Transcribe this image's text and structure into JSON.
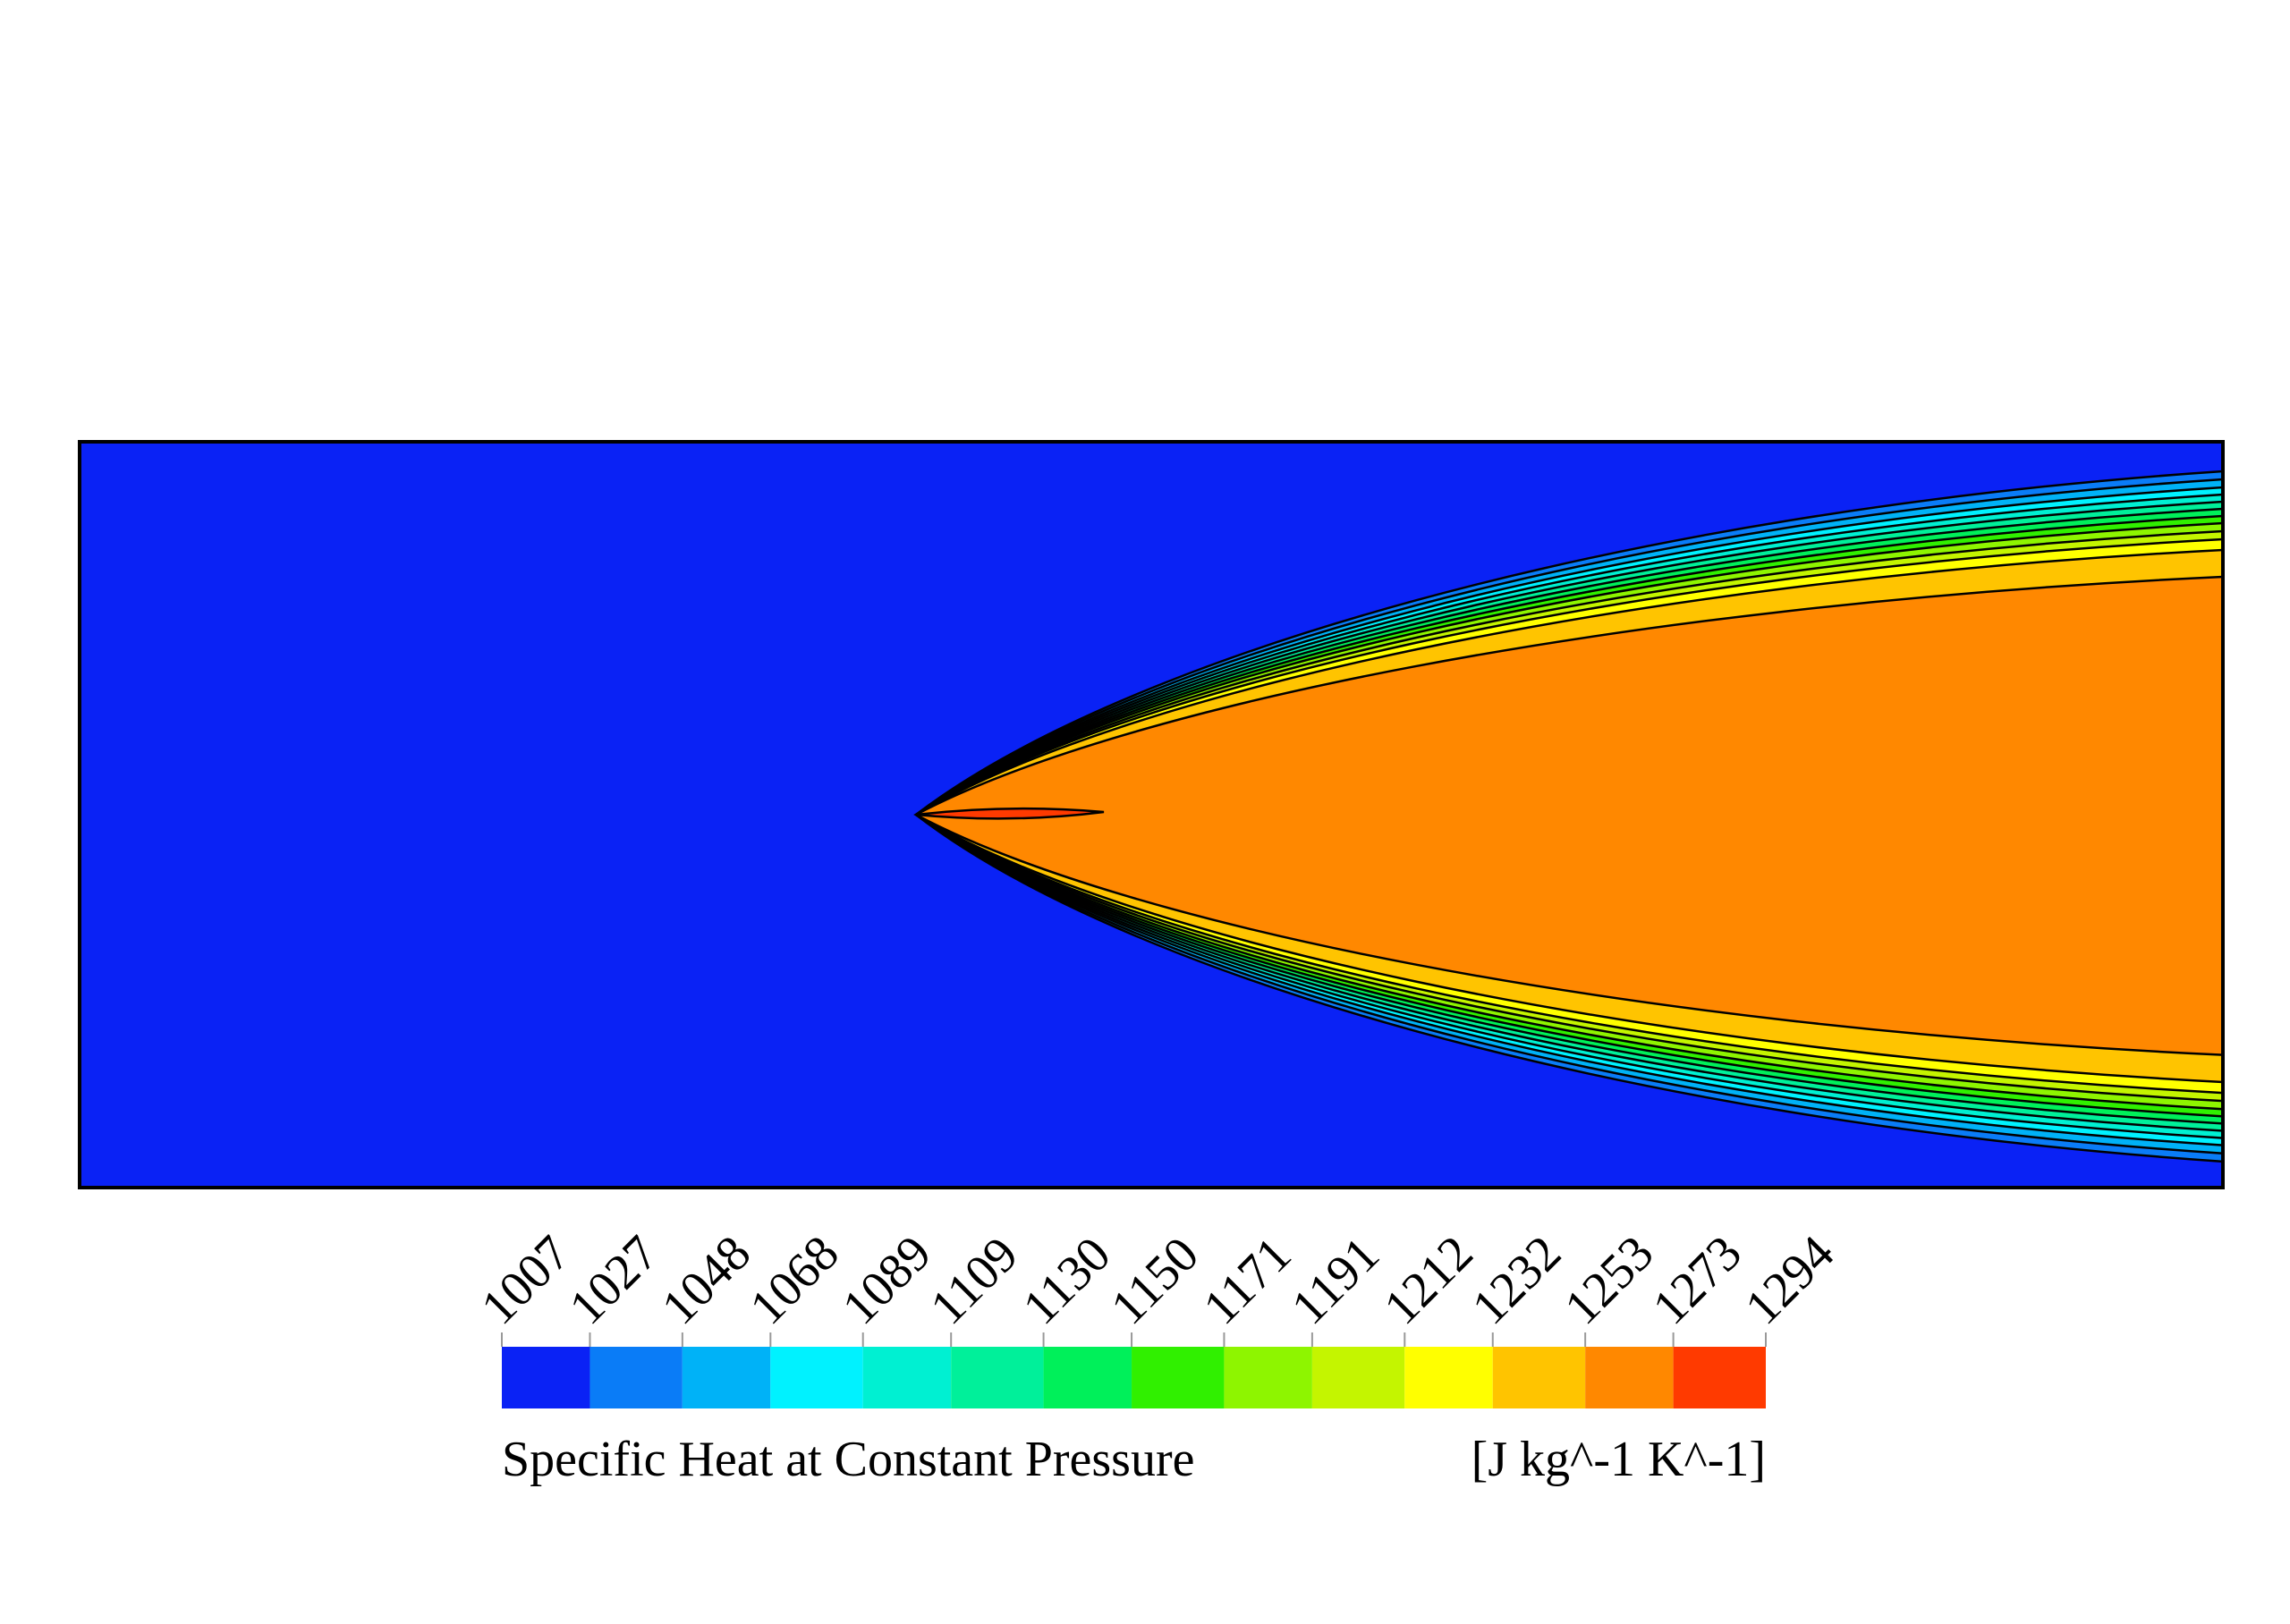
{
  "chart_data": {
    "type": "contour",
    "colorbar_label": "Specific Heat at Constant Pressure",
    "units": "[J kg^-1 K^-1]",
    "levels": [
      1007,
      1027,
      1048,
      1068,
      1089,
      1109,
      1130,
      1150,
      1171,
      1191,
      1212,
      1232,
      1253,
      1273,
      1294
    ],
    "colors": [
      "#0a22f5",
      "#0a7cf7",
      "#00b2f7",
      "#00f2ff",
      "#00f0d2",
      "#00f09a",
      "#00f05a",
      "#30f000",
      "#8ef500",
      "#c4f500",
      "#ffff00",
      "#ffc400",
      "#ff8800",
      "#ff3a00"
    ]
  }
}
